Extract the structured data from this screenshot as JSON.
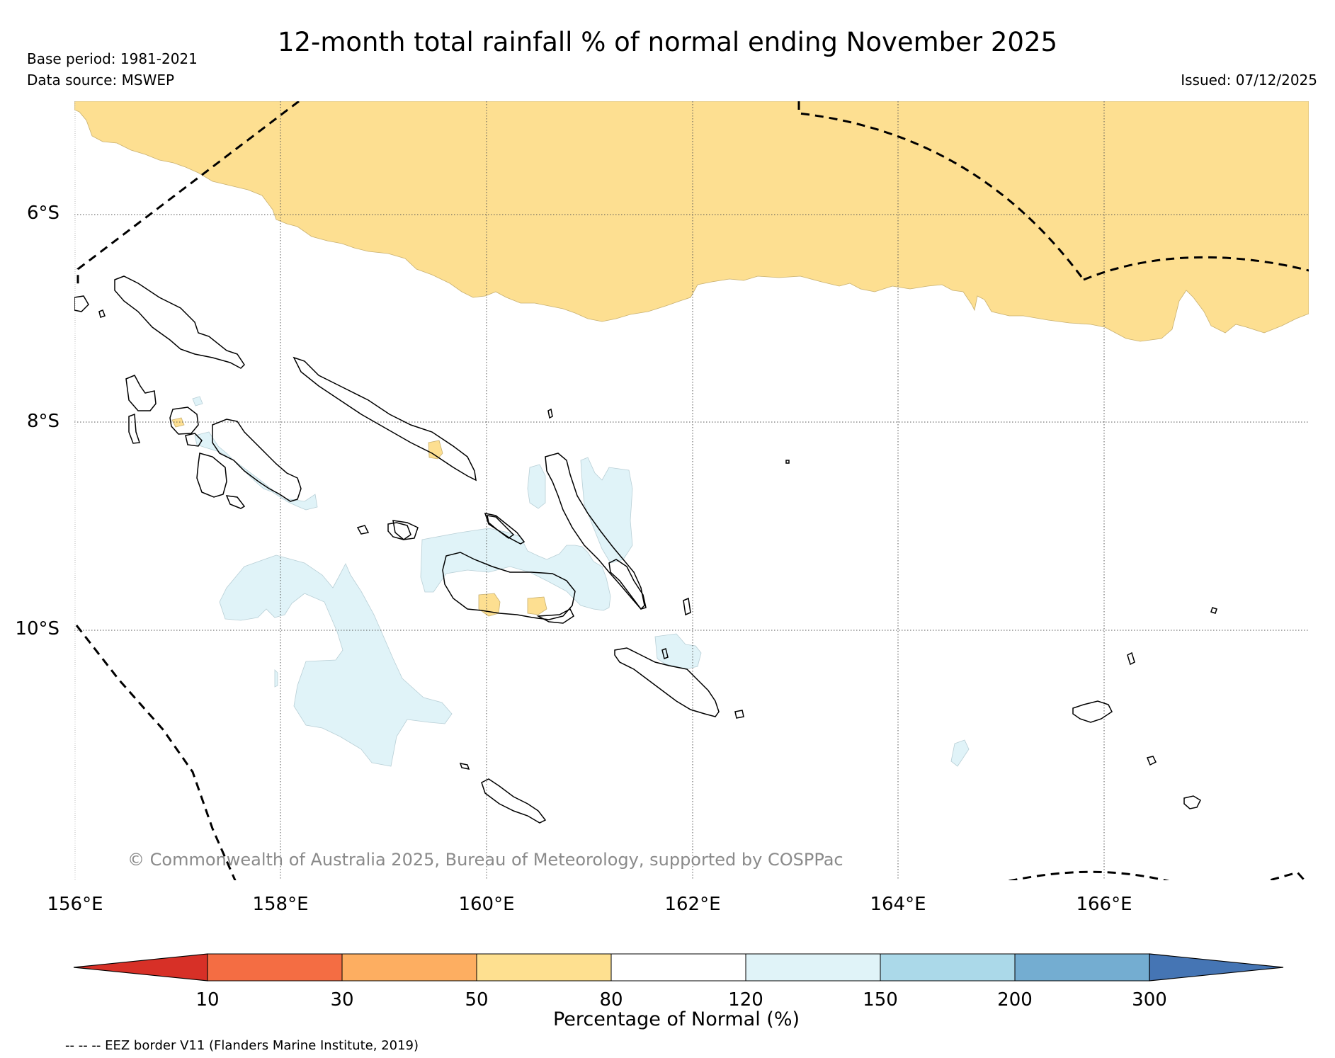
{
  "title": "12-month total rainfall % of normal ending November 2025",
  "meta": {
    "base_period": "Base period: 1981-2021",
    "data_source": "Data source: MSWEP",
    "issued": "Issued: 07/12/2025"
  },
  "map": {
    "lat_labels": [
      "6°S",
      "8°S",
      "10°S"
    ],
    "lon_labels": [
      "156°E",
      "158°E",
      "160°E",
      "162°E",
      "164°E",
      "166°E"
    ],
    "copyright": "© Commonwealth of Australia 2025, Bureau of Meteorology, supported by COSPPac",
    "colors": {
      "dry_50_80": "#fddf91",
      "wet_120_150": "#e0f3f8",
      "coastline": "#000000",
      "eez_border": "#000000",
      "grid": "#555555"
    }
  },
  "colorbar": {
    "title": "Percentage of Normal (%)",
    "ticks": [
      "10",
      "30",
      "50",
      "80",
      "120",
      "150",
      "200",
      "300"
    ],
    "colors": [
      "#d73027",
      "#f46d43",
      "#fdae61",
      "#fee090",
      "#ffffff",
      "#e0f3f8",
      "#abd9e9",
      "#74add1",
      "#4575b4"
    ]
  },
  "legend_note": "-- -- -- EEZ border V11 (Flanders Marine Institute, 2019)"
}
